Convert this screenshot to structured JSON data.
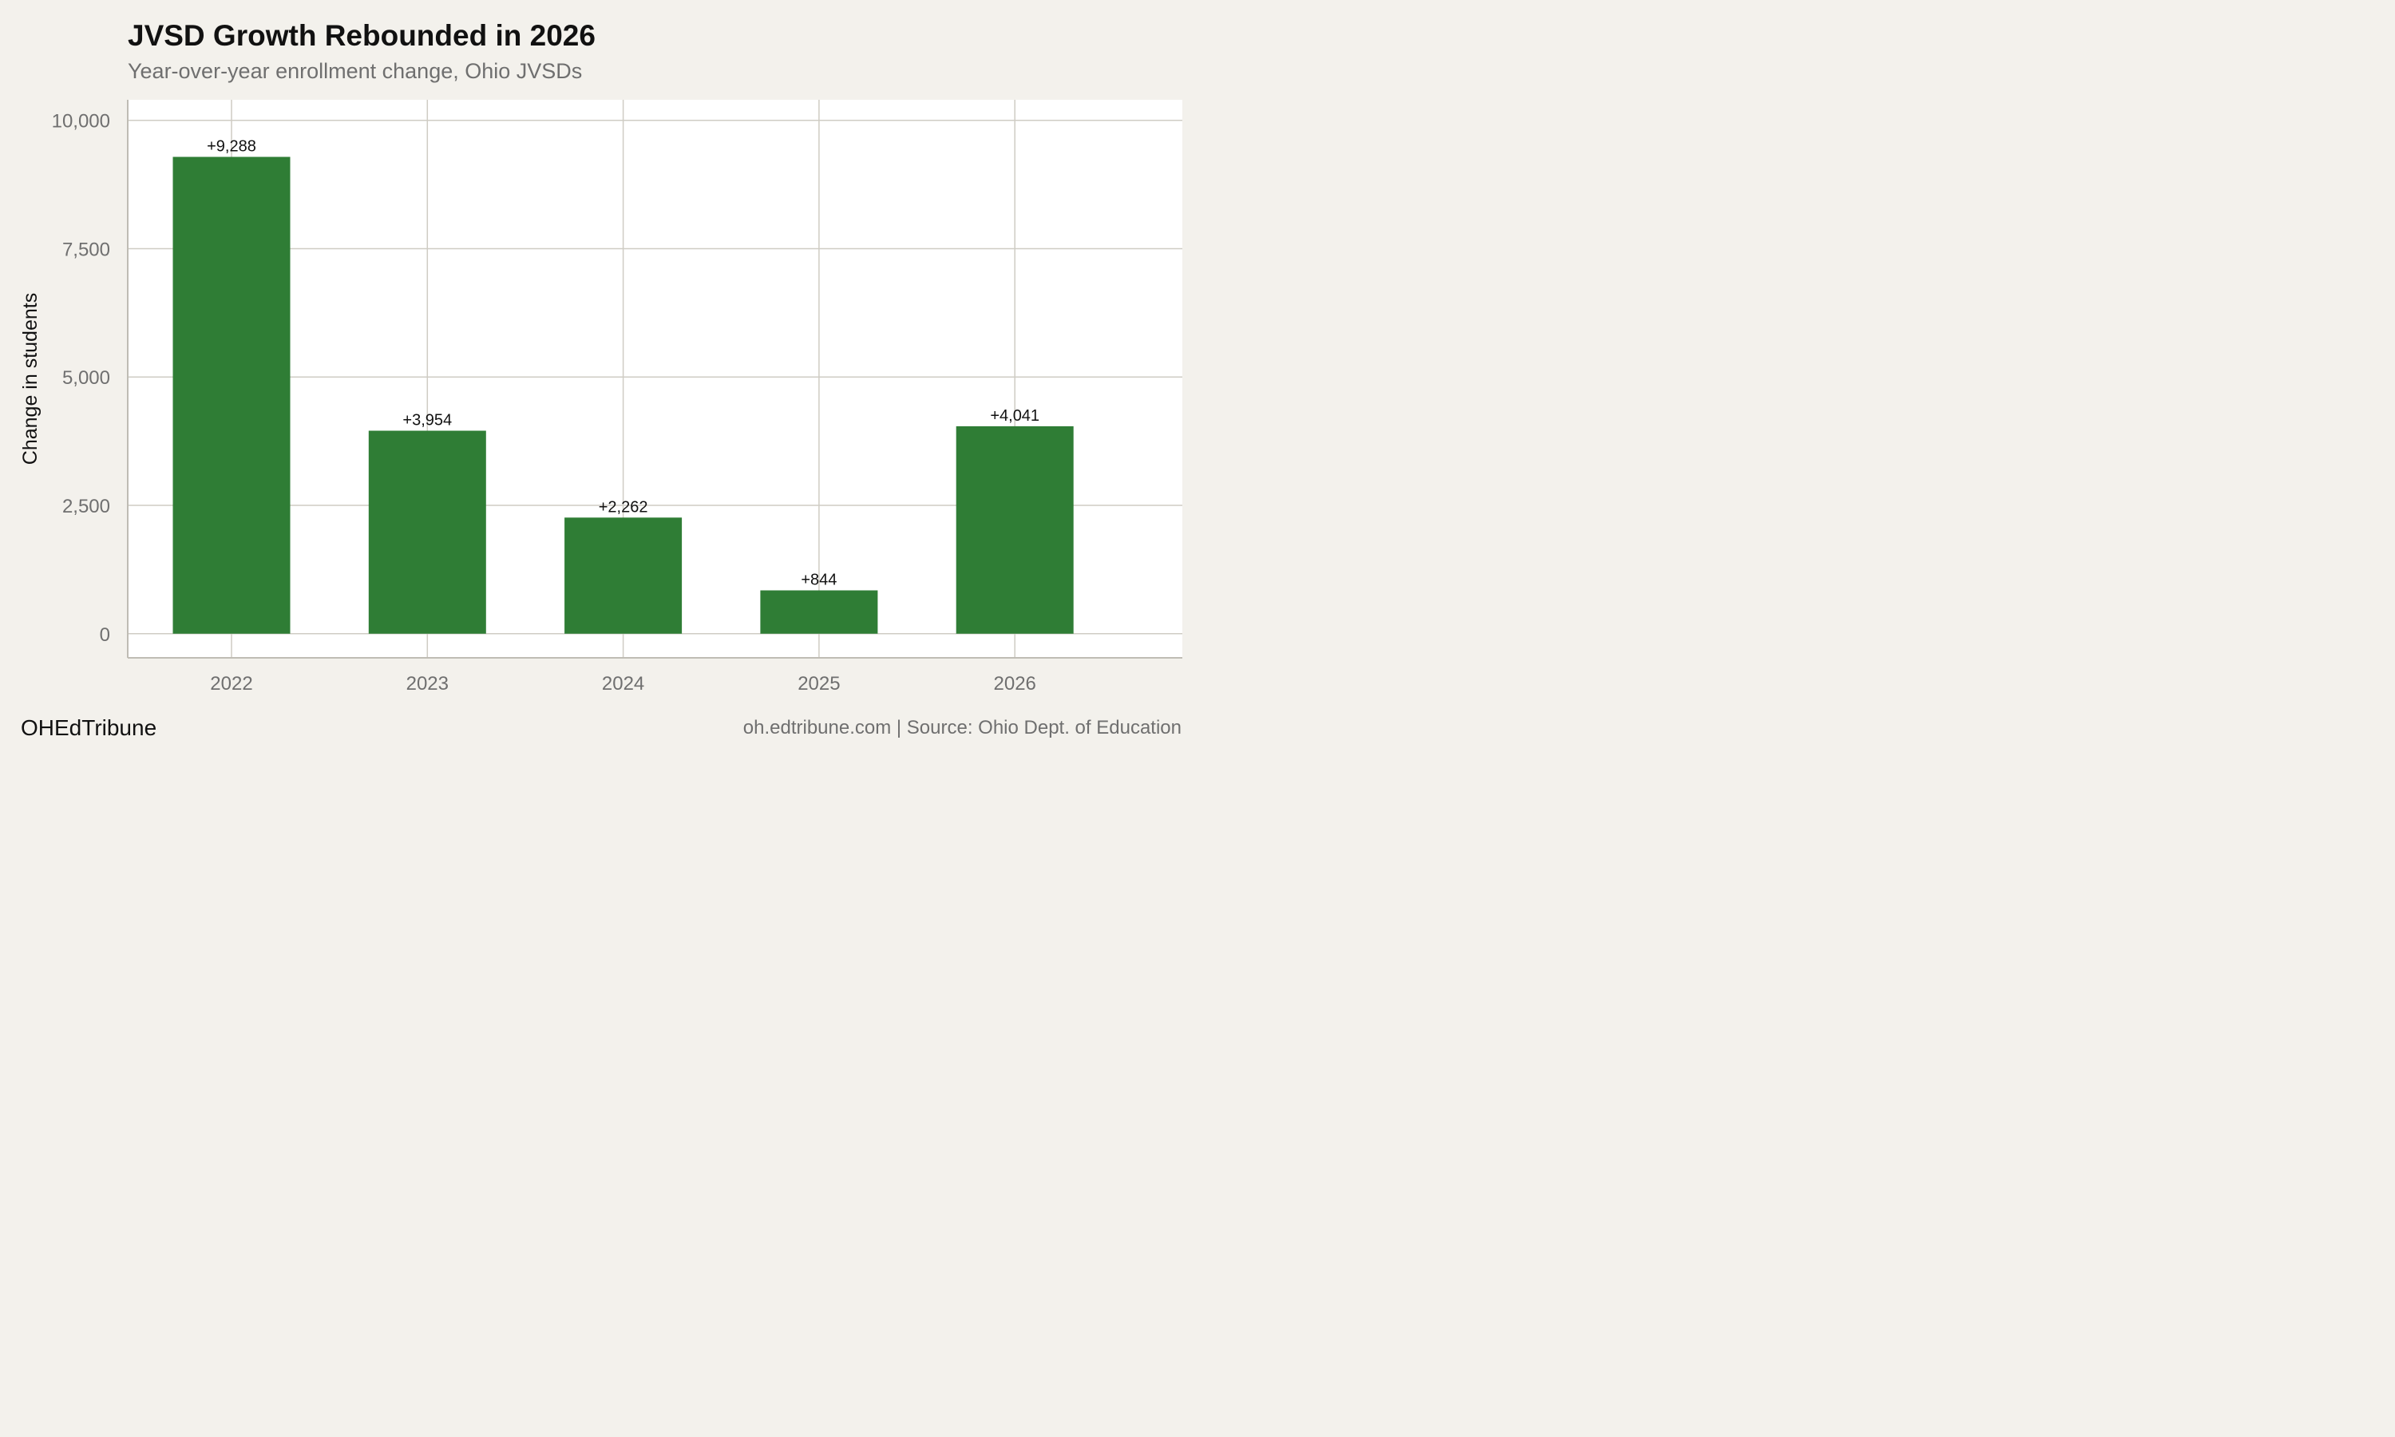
{
  "header": {
    "title": "JVSD Growth Rebounded in 2026",
    "subtitle": "Year-over-year enrollment change, Ohio JVSDs"
  },
  "footer": {
    "brand": "OHEdTribune",
    "source": "oh.edtribune.com | Source: Ohio Dept. of Education"
  },
  "colors": {
    "bar": "#2f7d35",
    "background": "#f3f1ec",
    "plot_background": "#ffffff",
    "grid": "#cfccc4"
  },
  "chart_data": {
    "type": "bar",
    "title": "JVSD Growth Rebounded in 2026",
    "subtitle": "Year-over-year enrollment change, Ohio JVSDs",
    "xlabel": "",
    "ylabel": "Change in students",
    "categories": [
      "2022",
      "2023",
      "2024",
      "2025",
      "2026"
    ],
    "values": [
      9288,
      3954,
      2262,
      844,
      4041
    ],
    "data_labels": [
      "+9,288",
      "+3,954",
      "+2,262",
      "+844",
      "+4,041"
    ],
    "yticks": [
      0,
      2500,
      5000,
      7500,
      10000
    ],
    "ytick_labels": [
      "0",
      "2,500",
      "5,000",
      "7,500",
      "10,000"
    ],
    "ylim": [
      -470,
      10400
    ],
    "grid": true,
    "legend": "none"
  }
}
